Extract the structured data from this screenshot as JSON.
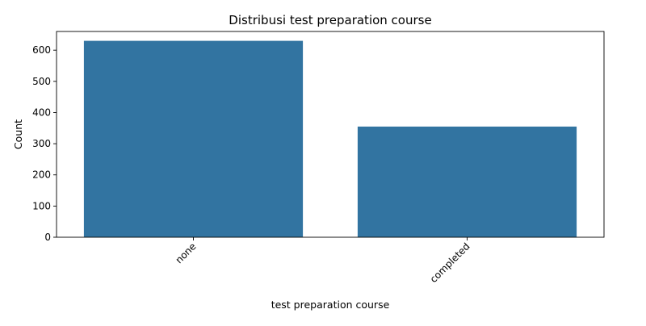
{
  "chart_data": {
    "type": "bar",
    "title": "Distribusi test preparation course",
    "xlabel": "test preparation course",
    "ylabel": "Count",
    "categories": [
      "none",
      "completed"
    ],
    "values": [
      630,
      355
    ],
    "ylim": [
      0,
      660
    ],
    "yticks": [
      0,
      100,
      200,
      300,
      400,
      500,
      600
    ],
    "bar_color": "#3274a1",
    "grid": false,
    "legend": false
  }
}
